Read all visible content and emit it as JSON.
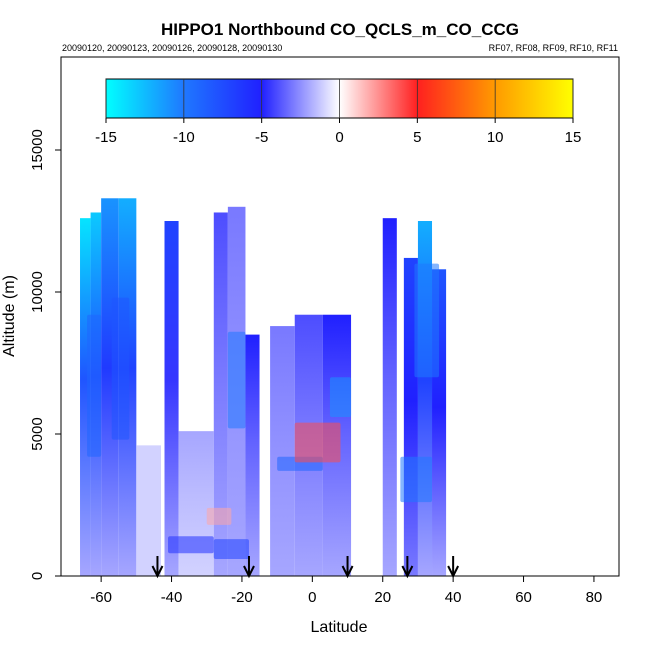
{
  "chart_data": {
    "type": "heatmap",
    "title": "HIPPO1 Northbound CO_QCLS_m_CO_CCG",
    "subtitle_left": "20090120, 20090123, 20090126, 20090128, 20090130",
    "subtitle_right": "RF07, RF08, RF09, RF10, RF11",
    "xlabel": "Latitude",
    "ylabel": "Altitude (m)",
    "xlim": [
      -72,
      90
    ],
    "ylim": [
      0,
      18200
    ],
    "xticks": [
      -60,
      -40,
      -20,
      0,
      20,
      40,
      60,
      80
    ],
    "yticks": [
      0,
      5000,
      10000,
      15000
    ],
    "colorbar": {
      "ticks": [
        -15,
        -10,
        -5,
        0,
        5,
        10,
        15
      ],
      "range": [
        -15,
        15
      ],
      "colors": [
        {
          "at": -15,
          "color": "#00ffff"
        },
        {
          "at": -10,
          "color": "#1f78ff"
        },
        {
          "at": -5,
          "color": "#2020ff"
        },
        {
          "at": 0,
          "color": "#ffffff"
        },
        {
          "at": 5,
          "color": "#ff2020"
        },
        {
          "at": 10,
          "color": "#ff9a00"
        },
        {
          "at": 15,
          "color": "#ffff00"
        }
      ]
    },
    "flight_markers_lat": [
      -44,
      -18,
      10,
      27,
      40
    ],
    "regions": [
      {
        "lat": [
          -66,
          -63
        ],
        "alt": [
          0,
          12600
        ],
        "top_value": -14,
        "bottom_value": -2
      },
      {
        "lat": [
          -63,
          -60
        ],
        "alt": [
          0,
          12800
        ],
        "top_value": -13,
        "bottom_value": -2
      },
      {
        "lat": [
          -60,
          -55
        ],
        "alt": [
          0,
          13300
        ],
        "top_value": -11,
        "bottom_value": -2
      },
      {
        "lat": [
          -55,
          -50
        ],
        "alt": [
          0,
          13300
        ],
        "top_value": -12,
        "bottom_value": -2
      },
      {
        "lat": [
          -50,
          -43
        ],
        "alt": [
          0,
          4600
        ],
        "top_value": -1,
        "bottom_value": -1
      },
      {
        "lat": [
          -42,
          -38
        ],
        "alt": [
          0,
          12500
        ],
        "top_value": -7,
        "bottom_value": -2
      },
      {
        "lat": [
          -38,
          -28
        ],
        "alt": [
          0,
          5100
        ],
        "top_value": -2,
        "bottom_value": -1
      },
      {
        "lat": [
          -28,
          -24
        ],
        "alt": [
          0,
          12800
        ],
        "top_value": -4,
        "bottom_value": -2
      },
      {
        "lat": [
          -24,
          -19
        ],
        "alt": [
          0,
          13000
        ],
        "top_value": -3,
        "bottom_value": -2
      },
      {
        "lat": [
          -19,
          -15
        ],
        "alt": [
          0,
          8500
        ],
        "top_value": -5,
        "bottom_value": -2
      },
      {
        "lat": [
          -12,
          -5
        ],
        "alt": [
          0,
          8800
        ],
        "top_value": -3,
        "bottom_value": -2
      },
      {
        "lat": [
          -5,
          3
        ],
        "alt": [
          0,
          9200
        ],
        "top_value": -4,
        "bottom_value": -2
      },
      {
        "lat": [
          3,
          11
        ],
        "alt": [
          0,
          9200
        ],
        "top_value": -5,
        "bottom_value": -2
      },
      {
        "lat": [
          20,
          24
        ],
        "alt": [
          0,
          12600
        ],
        "top_value": -5,
        "bottom_value": -2
      },
      {
        "lat": [
          26,
          30
        ],
        "alt": [
          0,
          11200
        ],
        "top_value": -7,
        "bottom_value": -3
      },
      {
        "lat": [
          30,
          34
        ],
        "alt": [
          0,
          12500
        ],
        "top_value": -12,
        "bottom_value": -2
      },
      {
        "lat": [
          34,
          38
        ],
        "alt": [
          0,
          10800
        ],
        "top_value": -8,
        "bottom_value": -2
      }
    ],
    "features": [
      {
        "lat": [
          -64,
          -60
        ],
        "alt": [
          4200,
          9200
        ],
        "value": -9
      },
      {
        "lat": [
          -57,
          -52
        ],
        "alt": [
          4800,
          9800
        ],
        "value": -8
      },
      {
        "lat": [
          -24,
          -19
        ],
        "alt": [
          5200,
          8600
        ],
        "value": -10
      },
      {
        "lat": [
          -10,
          3
        ],
        "alt": [
          3700,
          4200
        ],
        "value": -9
      },
      {
        "lat": [
          5,
          11
        ],
        "alt": [
          5600,
          7000
        ],
        "value": -11
      },
      {
        "lat": [
          -5,
          8
        ],
        "alt": [
          4000,
          5400
        ],
        "value": 4
      },
      {
        "lat": [
          -30,
          -23
        ],
        "alt": [
          1800,
          2400
        ],
        "value": 2
      },
      {
        "lat": [
          25,
          34
        ],
        "alt": [
          2600,
          4200
        ],
        "value": -10
      },
      {
        "lat": [
          29,
          36
        ],
        "alt": [
          7000,
          11000
        ],
        "value": -10
      },
      {
        "lat": [
          -41,
          -28
        ],
        "alt": [
          800,
          1400
        ],
        "value": -6
      },
      {
        "lat": [
          -28,
          -18
        ],
        "alt": [
          600,
          1300
        ],
        "value": -7
      }
    ]
  }
}
